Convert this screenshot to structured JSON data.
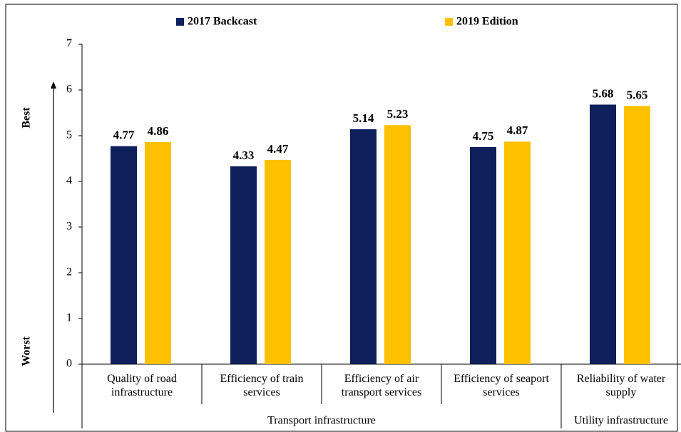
{
  "chart_data": {
    "type": "bar",
    "categories": [
      "Quality of road infrastructure",
      "Efficiency of train services",
      "Efficiency of air transport services",
      "Efficiency of seaport services",
      "Reliability of water supply"
    ],
    "groups": [
      {
        "label": "Transport infrastructure",
        "categories": [
          "Quality of road infrastructure",
          "Efficiency of train services",
          "Efficiency of air transport services",
          "Efficiency of seaport services"
        ]
      },
      {
        "label": "Utility infrastructure",
        "categories": [
          "Reliability of water supply"
        ]
      }
    ],
    "series": [
      {
        "name": "2017 Backcast",
        "color": "#0e1f5b",
        "values": [
          4.77,
          4.33,
          5.14,
          4.75,
          5.68
        ]
      },
      {
        "name": "2019 Edition",
        "color": "#ffc000",
        "values": [
          4.86,
          4.47,
          5.23,
          4.87,
          5.65
        ]
      }
    ],
    "ylim": [
      0,
      7
    ],
    "yticks": [
      0,
      1,
      2,
      3,
      4,
      5,
      6,
      7
    ],
    "y_annotations": {
      "top": "Best",
      "bottom": "Worst"
    },
    "grid": false
  }
}
